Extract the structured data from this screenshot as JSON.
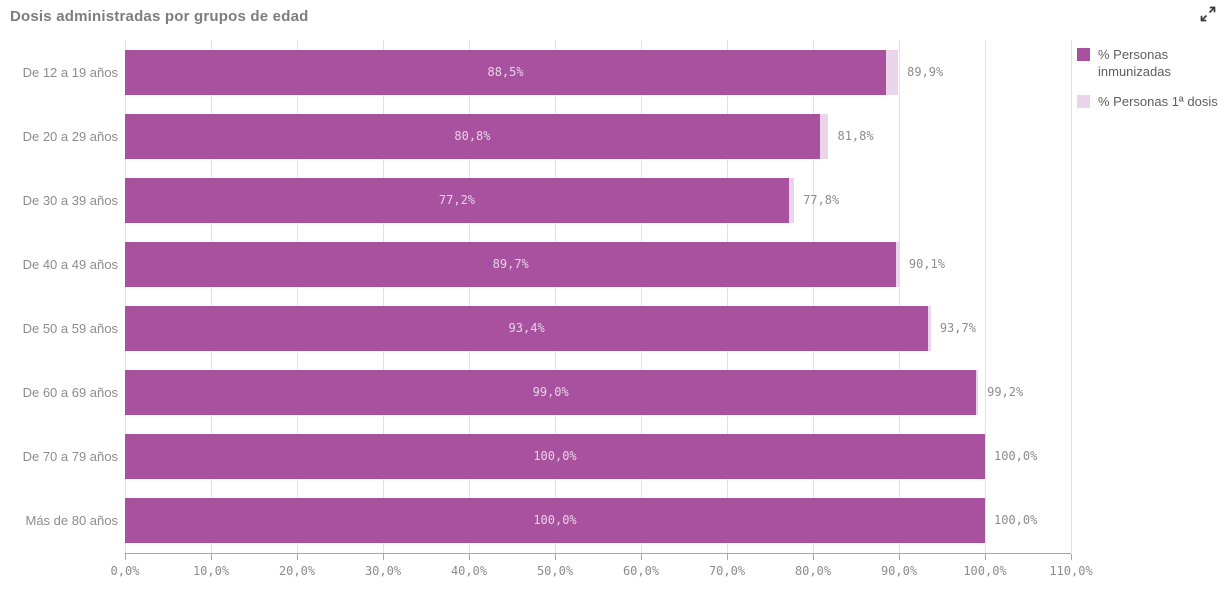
{
  "header": {
    "title": "Dosis administradas por grupos de edad"
  },
  "icons": {
    "expand": "expand-arrows"
  },
  "colors": {
    "immunized_bar": "#a8519f",
    "first_dose_bar": "#ead4e9",
    "title_text": "#7d7d7d",
    "axis_text": "#8c8c8c",
    "legend_text": "#5e5e5e",
    "gridline": "#e2e2e2",
    "axis_line": "#a8a8a8",
    "inner_label_text": "#e8d3e6"
  },
  "legend": {
    "items": [
      {
        "label": "% Personas inmunizadas",
        "color": "#a8519f"
      },
      {
        "label": "% Personas 1ª dosis",
        "color": "#ead4e9"
      }
    ]
  },
  "chart_data": {
    "type": "bar",
    "orientation": "horizontal",
    "title": "Dosis administradas por grupos de edad",
    "categories": [
      "De 12 a 19 años",
      "De 20 a 29 años",
      "De 30 a 39 años",
      "De 40 a 49 años",
      "De 50 a 59 años",
      "De 60 a 69 años",
      "De 70 a 79 años",
      "Más de 80 años"
    ],
    "series": [
      {
        "name": "% Personas inmunizadas",
        "color": "#a8519f",
        "values": [
          88.5,
          80.8,
          77.2,
          89.7,
          93.4,
          99.0,
          100.0,
          100.0
        ],
        "labels": [
          "88,5%",
          "80,8%",
          "77,2%",
          "89,7%",
          "93,4%",
          "99,0%",
          "100,0%",
          "100,0%"
        ],
        "label_position": "inside-center"
      },
      {
        "name": "% Personas 1ª dosis",
        "color": "#ead4e9",
        "values": [
          89.9,
          81.8,
          77.8,
          90.1,
          93.7,
          99.2,
          100.0,
          100.0
        ],
        "labels": [
          "89,9%",
          "81,8%",
          "77,8%",
          "90,1%",
          "93,7%",
          "99,2%",
          "100,0%",
          "100,0%"
        ],
        "label_position": "outside-right"
      }
    ],
    "x_axis": {
      "min": 0,
      "max": 110,
      "ticks": [
        {
          "value": 0,
          "label": "0,0%"
        },
        {
          "value": 10,
          "label": "10,0%"
        },
        {
          "value": 20,
          "label": "20,0%"
        },
        {
          "value": 30,
          "label": "30,0%"
        },
        {
          "value": 40,
          "label": "40,0%"
        },
        {
          "value": 50,
          "label": "50,0%"
        },
        {
          "value": 60,
          "label": "60,0%"
        },
        {
          "value": 70,
          "label": "70,0%"
        },
        {
          "value": 80,
          "label": "80,0%"
        },
        {
          "value": 90,
          "label": "90,0%"
        },
        {
          "value": 100,
          "label": "100,0%"
        },
        {
          "value": 110,
          "label": "110,0%"
        }
      ]
    },
    "grid": true,
    "legend_position": "top-right"
  }
}
